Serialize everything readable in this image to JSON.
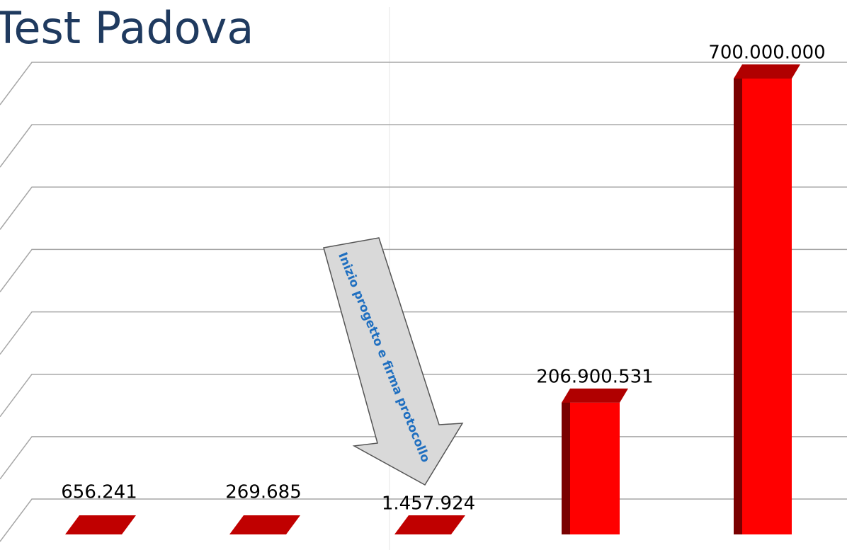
{
  "chart_data": {
    "type": "bar",
    "title": "Test Padova",
    "annotation": "Inizio progetto e firma protocollo",
    "values": [
      656241,
      269685,
      1457924,
      206900531,
      700000000
    ],
    "value_labels": [
      "656.241",
      "269.685",
      "1.457.924",
      "206.900.531",
      "700.000.000"
    ],
    "color": "#ff0000",
    "ylim": [
      0,
      700000000
    ],
    "yticks": [
      0,
      100000000,
      200000000,
      300000000,
      400000000,
      500000000,
      600000000,
      700000000
    ],
    "grid": true
  }
}
